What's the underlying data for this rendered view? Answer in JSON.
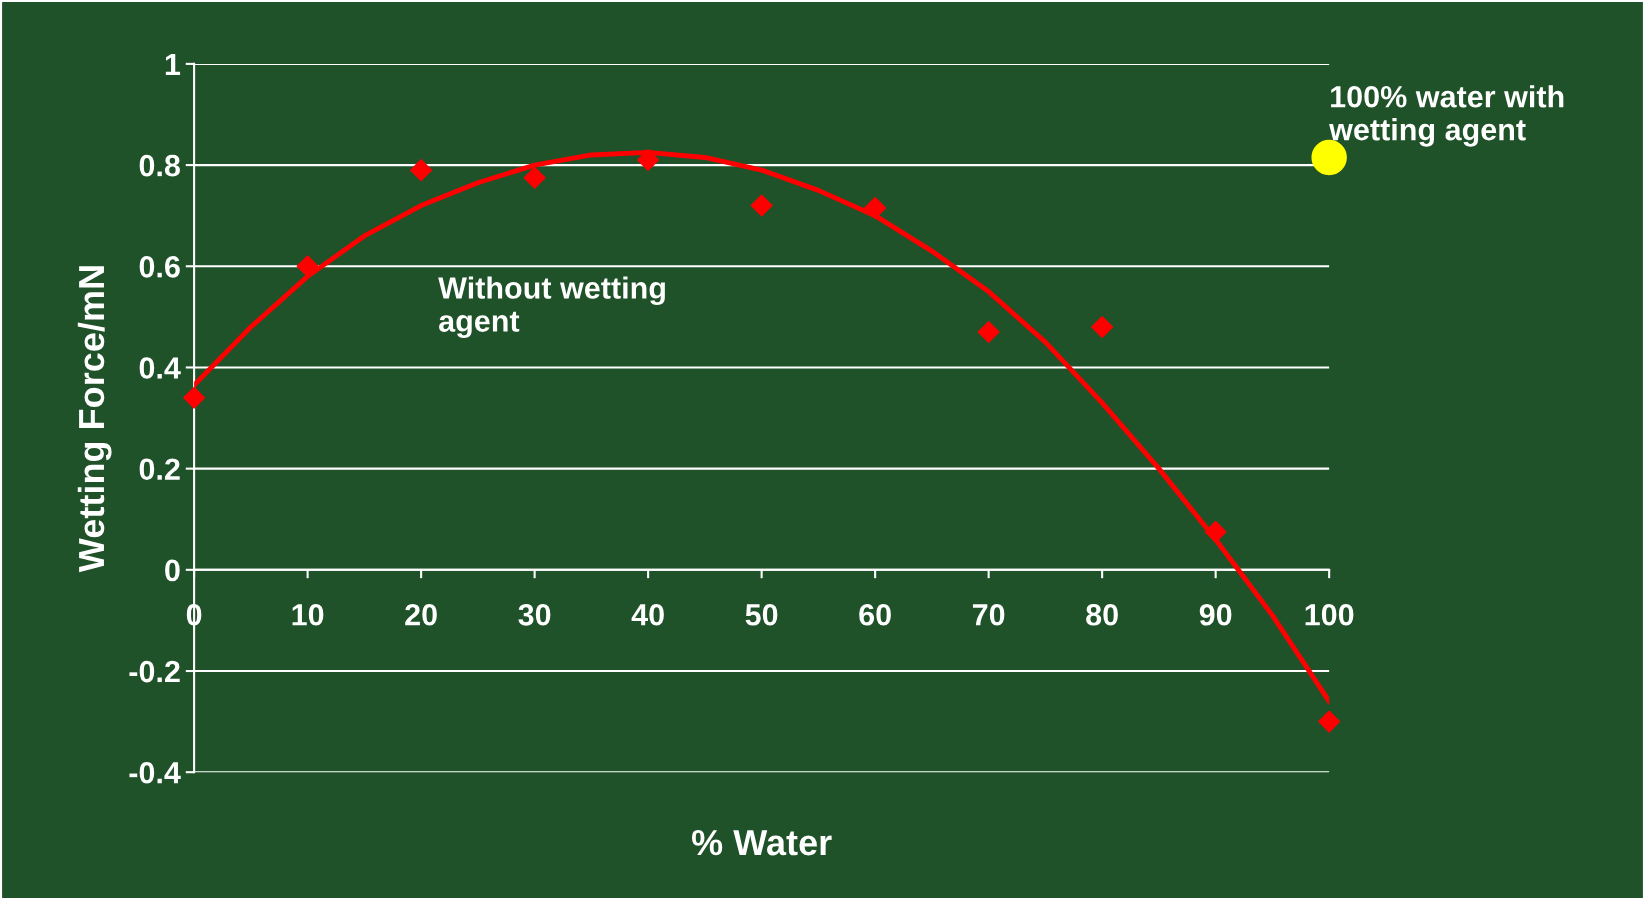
{
  "chart_data": {
    "type": "scatter",
    "xlabel": "% Water",
    "ylabel": "Wetting Force/mN",
    "xlim": [
      0,
      100
    ],
    "xticks": [
      0,
      10,
      20,
      30,
      40,
      50,
      60,
      70,
      80,
      90,
      100
    ],
    "ylim": [
      -0.4,
      1
    ],
    "yticks": [
      -0.4,
      -0.2,
      0,
      0.2,
      0.4,
      0.6,
      0.8,
      1
    ],
    "grid": "y",
    "legend": false,
    "series": [
      {
        "marker": "diamond",
        "color": "#ff0000",
        "x": [
          0,
          10,
          20,
          30,
          40,
          50,
          60,
          70,
          80,
          90,
          100
        ],
        "values": [
          0.34,
          0.6,
          0.79,
          0.775,
          0.81,
          0.72,
          0.715,
          0.47,
          0.48,
          0.075,
          -0.3
        ]
      },
      {
        "type": "line",
        "marker": "none",
        "line_style": "solid",
        "color": "#ff0000",
        "x": [
          0,
          5,
          10,
          15,
          20,
          25,
          30,
          35,
          40,
          45,
          50,
          55,
          60,
          65,
          70,
          75,
          80,
          85,
          90,
          95,
          100
        ],
        "values": [
          0.365,
          0.48,
          0.58,
          0.66,
          0.72,
          0.765,
          0.8,
          0.82,
          0.825,
          0.815,
          0.79,
          0.75,
          0.7,
          0.63,
          0.55,
          0.45,
          0.33,
          0.2,
          0.06,
          -0.09,
          -0.26
        ]
      },
      {
        "marker": "circle",
        "color": "#ffff00",
        "x": [
          100
        ],
        "values": [
          0.815
        ]
      }
    ],
    "annotations": [
      "Without wetting agent",
      "100% water with wetting agent"
    ]
  }
}
